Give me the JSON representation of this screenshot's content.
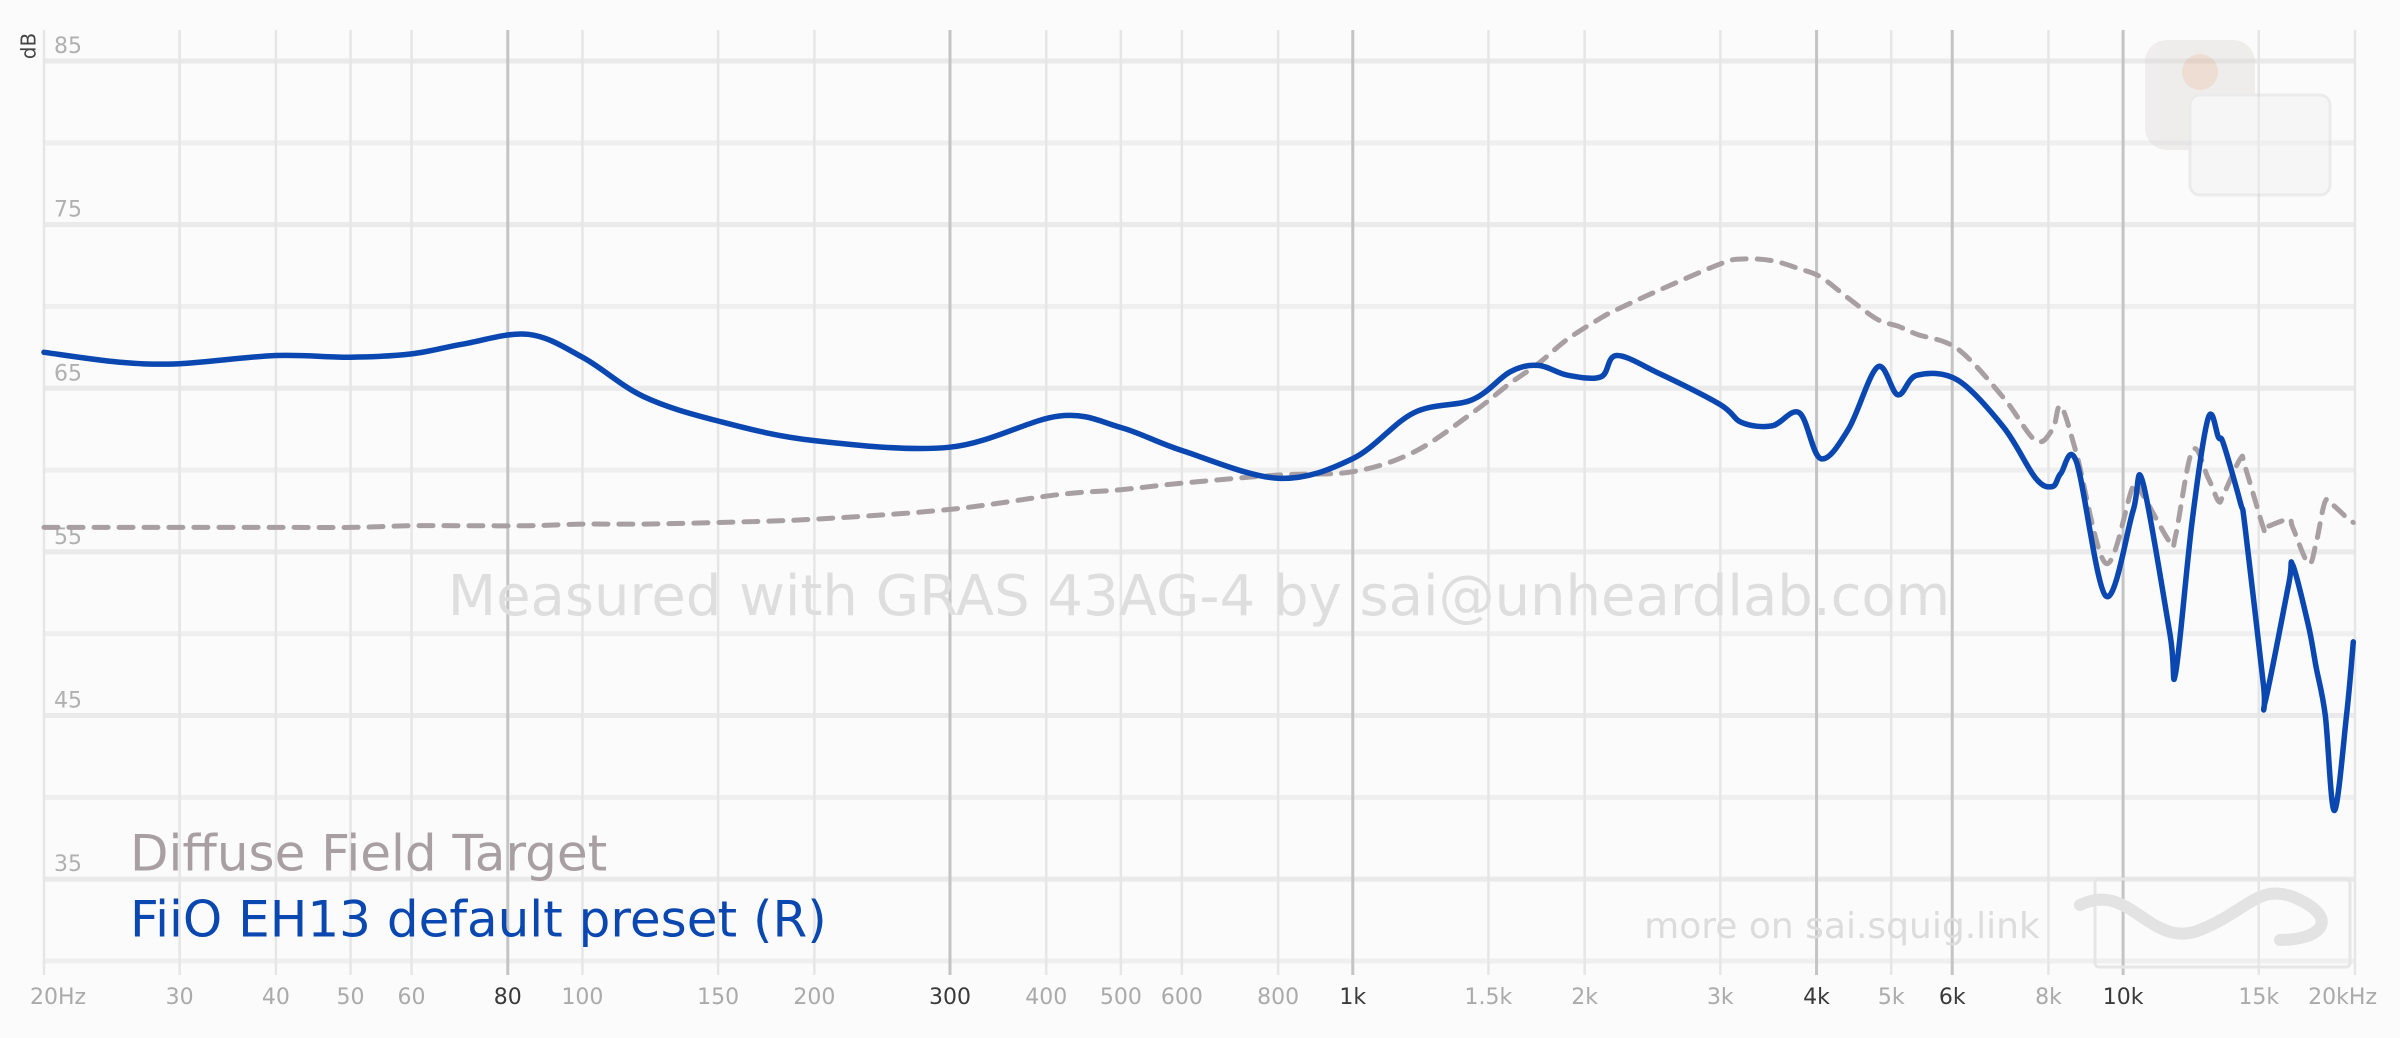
{
  "chart_data": {
    "type": "line",
    "y_axis_label": "dB",
    "watermark": "Measured with GRAS 43AG-4 by sai@unheardlab.com",
    "footer_link": "more on sai.squig.link",
    "x_scale": "log",
    "xlim": [
      20,
      20000
    ],
    "ylim": [
      30,
      85
    ],
    "yticks": [
      35,
      45,
      55,
      65,
      75,
      85
    ],
    "y_minor_ticks": [
      30,
      40,
      50,
      60,
      70,
      80
    ],
    "xticks": [
      {
        "value": 20,
        "label": "20Hz"
      },
      30,
      40,
      50,
      60,
      80,
      100,
      150,
      200,
      300,
      400,
      500,
      600,
      800,
      {
        "value": 1000,
        "label": "1k"
      },
      {
        "value": 1500,
        "label": "1.5k"
      },
      {
        "value": 2000,
        "label": "2k"
      },
      {
        "value": 3000,
        "label": "3k"
      },
      {
        "value": 4000,
        "label": "4k"
      },
      {
        "value": 5000,
        "label": "5k"
      },
      {
        "value": 6000,
        "label": "6k"
      },
      {
        "value": 8000,
        "label": "8k"
      },
      {
        "value": 10000,
        "label": "10k"
      },
      {
        "value": 15000,
        "label": "15k"
      },
      {
        "value": 20000,
        "label": "20kHz"
      }
    ],
    "xticks_highlight": [
      80,
      300,
      1000,
      4000,
      6000,
      10000
    ],
    "grid": true,
    "legend": "bottom-left",
    "x": [
      20,
      25,
      30,
      40,
      50,
      60,
      70,
      85,
      100,
      120,
      150,
      200,
      300,
      415,
      500,
      600,
      800,
      1000,
      1200,
      1430,
      1600,
      1740,
      1900,
      2100,
      2200,
      2500,
      3000,
      3200,
      3500,
      3800,
      4050,
      4400,
      4800,
      5100,
      5400,
      6100,
      7000,
      7700,
      8100,
      8300,
      8700,
      9500,
      10300,
      10600,
      11500,
      11700,
      12300,
      12900,
      13300,
      13500,
      14200,
      14400,
      15200,
      15300,
      16400,
      16600,
      17400,
      17800,
      18300,
      18800,
      19500,
      19900
    ],
    "series": [
      {
        "name": "Diffuse Field Target",
        "color": "#a89fa3",
        "dashed": true,
        "values": [
          56.5,
          56.5,
          56.5,
          56.5,
          56.5,
          56.6,
          56.6,
          56.6,
          56.7,
          56.7,
          56.8,
          57.0,
          57.6,
          58.5,
          58.8,
          59.2,
          59.7,
          59.9,
          61.1,
          63.5,
          65.3,
          66.5,
          68.0,
          69.3,
          69.8,
          71.0,
          72.6,
          72.9,
          72.8,
          72.3,
          71.8,
          70.5,
          69.2,
          68.8,
          68.3,
          67.4,
          64.4,
          61.8,
          62.5,
          63.9,
          61.0,
          54.3,
          59.0,
          58.5,
          55.6,
          56.0,
          61.2,
          59.5,
          58.1,
          58.5,
          60.7,
          60.2,
          56.5,
          56.5,
          57.0,
          56.5,
          54.3,
          55.5,
          58.1,
          57.8,
          57.1,
          56.8
        ]
      },
      {
        "name": "FiiO EH13 default preset (R)",
        "color": "#0a47b0",
        "dashed": false,
        "values": [
          67.2,
          66.6,
          66.5,
          67.0,
          66.9,
          67.1,
          67.7,
          68.3,
          66.9,
          64.5,
          63.0,
          61.8,
          61.4,
          63.3,
          62.6,
          61.2,
          59.5,
          60.7,
          63.5,
          64.3,
          66.0,
          66.4,
          65.8,
          65.7,
          67.0,
          65.9,
          64.0,
          62.9,
          62.7,
          63.5,
          60.7,
          62.5,
          66.3,
          64.6,
          65.8,
          65.5,
          62.6,
          59.5,
          59.0,
          59.8,
          60.5,
          52.3,
          57.5,
          59.3,
          50.0,
          47.6,
          57.0,
          63.2,
          62.0,
          61.6,
          58.0,
          56.5,
          47.0,
          45.9,
          53.0,
          54.2,
          50.5,
          48.0,
          45.0,
          39.2,
          45.0,
          49.5
        ]
      }
    ]
  }
}
